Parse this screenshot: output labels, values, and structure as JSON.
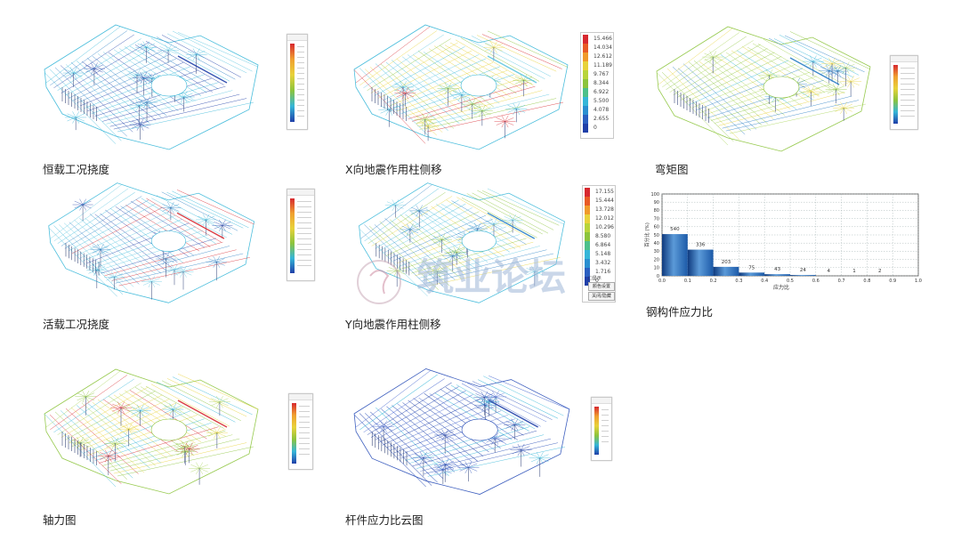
{
  "captions": {
    "p1": "恒载工况挠度",
    "p2": "X向地震作用柱侧移",
    "p3": "弯矩图",
    "p4": "活载工况挠度",
    "p5": "Y向地震作用柱侧移",
    "p6": "钢构件应力比",
    "p7": "轴力图",
    "p8": "杆件应力比云图"
  },
  "watermark": {
    "text": "筑业论坛"
  },
  "legend_p2": {
    "values": [
      "15.466",
      "14.034",
      "12.612",
      "11.189",
      "9.767",
      "8.344",
      "6.922",
      "5.500",
      "4.078",
      "2.655",
      "0"
    ]
  },
  "legend_p5": {
    "values": [
      "17.155",
      "15.444",
      "13.728",
      "12.012",
      "10.296",
      "8.580",
      "6.864",
      "5.148",
      "3.432",
      "1.716",
      "0"
    ],
    "checkbox": "□显示",
    "btn1": "颜色设置",
    "btn2": "关闭/隐藏"
  },
  "colors": {
    "mesh_cyan": "#35b6d8",
    "mesh_blue": "#1f3fa8",
    "mesh_green": "#8cc43c",
    "mesh_yellow": "#e8d23a",
    "mesh_red": "#d7282f",
    "bar_blue": "#1c5aa8",
    "bar_dark": "#0f3a7e"
  },
  "chart_data": {
    "type": "bar",
    "title": "",
    "xlabel": "应力比",
    "ylabel": "百分比 (%)",
    "x_ticks": [
      "0.0",
      "0.1",
      "0.2",
      "0.3",
      "0.4",
      "0.5",
      "0.6",
      "0.7",
      "0.8",
      "0.9",
      "1.0"
    ],
    "y_ticks": [
      "0",
      "10",
      "20",
      "30",
      "40",
      "50",
      "60",
      "70",
      "80",
      "90",
      "100"
    ],
    "ylim": [
      0,
      100
    ],
    "xlim": [
      0,
      1.0
    ],
    "bins": [
      {
        "x0": 0.0,
        "x1": 0.1,
        "pct": 51,
        "label": "540"
      },
      {
        "x0": 0.1,
        "x1": 0.2,
        "pct": 32,
        "label": "336"
      },
      {
        "x0": 0.2,
        "x1": 0.3,
        "pct": 11,
        "label": "203"
      },
      {
        "x0": 0.3,
        "x1": 0.4,
        "pct": 4,
        "label": "75"
      },
      {
        "x0": 0.4,
        "x1": 0.5,
        "pct": 2,
        "label": "43"
      },
      {
        "x0": 0.5,
        "x1": 0.6,
        "pct": 1,
        "label": "24"
      },
      {
        "x0": 0.6,
        "x1": 0.7,
        "pct": 0,
        "label": "4"
      },
      {
        "x0": 0.7,
        "x1": 0.8,
        "pct": 0,
        "label": "1"
      },
      {
        "x0": 0.8,
        "x1": 0.9,
        "pct": 0,
        "label": "2"
      }
    ],
    "grid": true
  }
}
